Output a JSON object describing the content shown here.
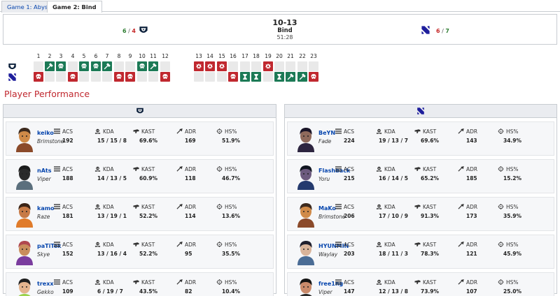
{
  "tabs": [
    "Game 1: Abyss",
    "Game 2: Bind"
  ],
  "active_tab": 1,
  "match": {
    "left_team": {
      "won": "6",
      "lost": "4"
    },
    "right_team": {
      "lost": "6",
      "won": "7"
    },
    "score": "10-13",
    "map": "Bind",
    "duration": "51:28"
  },
  "rounds": {
    "numbers": [
      "1",
      "2",
      "3",
      "4",
      "5",
      "6",
      "7",
      "8",
      "9",
      "10",
      "11",
      "12",
      "13",
      "14",
      "15",
      "16",
      "17",
      "18",
      "19",
      "20",
      "21",
      "22",
      "23"
    ],
    "left": [
      "",
      "defuse",
      "elim",
      "",
      "elim",
      "elim",
      "defuse",
      "",
      "",
      "elim",
      "defuse",
      "",
      "detonate",
      "detonate",
      "detonate",
      "",
      "",
      "",
      "detonate",
      "",
      "",
      "",
      ""
    ],
    "right": [
      "elim",
      "",
      "",
      "elim",
      "",
      "",
      "",
      "elim",
      "elim",
      "",
      "",
      "elim",
      "",
      "",
      "",
      "elim",
      "time",
      "time",
      "",
      "time",
      "defuse",
      "defuse",
      "elim"
    ]
  },
  "section_title": "Player Performance",
  "stat_labels": {
    "acs": "ACS",
    "kda": "KDA",
    "kast": "KAST",
    "adr": "ADR",
    "hs": "HS%"
  },
  "teams": [
    {
      "players": [
        {
          "name": "keiko",
          "agent": "Brimstone",
          "acs": "192",
          "kda": "15 / 15 / 8",
          "kast": "69.6%",
          "adr": "169",
          "hs": "51.9%"
        },
        {
          "name": "nAts",
          "agent": "Viper",
          "acs": "188",
          "kda": "14 / 13 / 5",
          "kast": "60.9%",
          "adr": "118",
          "hs": "46.7%"
        },
        {
          "name": "kamo",
          "agent": "Raze",
          "acs": "181",
          "kda": "13 / 19 / 1",
          "kast": "52.2%",
          "adr": "114",
          "hs": "13.6%"
        },
        {
          "name": "paTiTek",
          "agent": "Skye",
          "acs": "152",
          "kda": "13 / 16 / 4",
          "kast": "52.2%",
          "adr": "95",
          "hs": "35.5%"
        },
        {
          "name": "trexx",
          "agent": "Gekko",
          "acs": "109",
          "kda": "6 / 19 / 7",
          "kast": "43.5%",
          "adr": "82",
          "hs": "10.4%"
        }
      ]
    },
    {
      "players": [
        {
          "name": "BeYN",
          "agent": "Fade",
          "acs": "224",
          "kda": "19 / 13 / 7",
          "kast": "69.6%",
          "adr": "143",
          "hs": "34.9%"
        },
        {
          "name": "Flashback",
          "agent": "Yoru",
          "acs": "215",
          "kda": "16 / 14 / 5",
          "kast": "65.2%",
          "adr": "185",
          "hs": "15.2%"
        },
        {
          "name": "MaKo",
          "agent": "Brimstone",
          "acs": "206",
          "kda": "17 / 10 / 9",
          "kast": "91.3%",
          "adr": "173",
          "hs": "35.9%"
        },
        {
          "name": "HYUNMIN",
          "agent": "Waylay",
          "acs": "203",
          "kda": "18 / 11 / 3",
          "kast": "78.3%",
          "adr": "121",
          "hs": "45.9%"
        },
        {
          "name": "free1ng",
          "agent": "Viper",
          "acs": "147",
          "kda": "12 / 13 / 8",
          "kast": "73.9%",
          "adr": "107",
          "hs": "25.0%"
        }
      ]
    }
  ],
  "colors": {
    "win": "#1c7a56",
    "loss": "#c0282f",
    "accent": "#c0282f",
    "link": "#0645ad"
  }
}
